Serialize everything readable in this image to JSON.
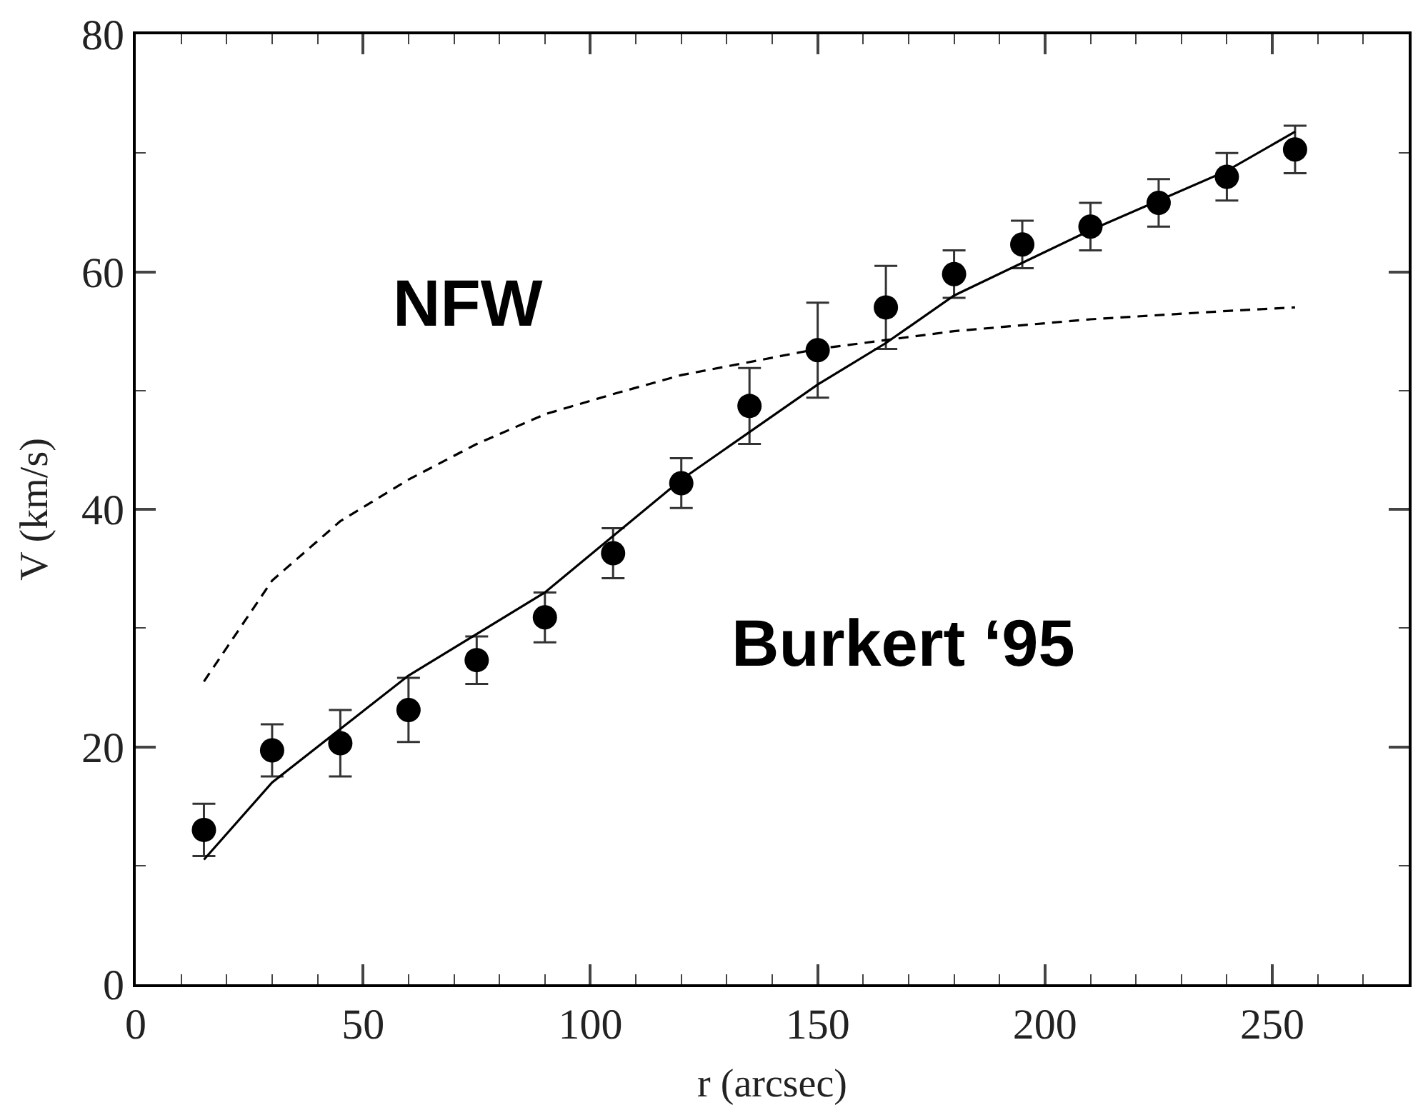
{
  "chart_data": {
    "type": "scatter",
    "xlabel": "r (arcsec)",
    "ylabel": "V (km/s)",
    "xlim": [
      0,
      280
    ],
    "ylim": [
      0,
      80
    ],
    "xticks": [
      0,
      50,
      100,
      150,
      200,
      250
    ],
    "yticks": [
      0,
      20,
      40,
      60,
      80
    ],
    "series": [
      {
        "marker": "circle",
        "color": "#000000",
        "x": [
          15,
          30,
          45,
          60,
          75,
          90,
          105,
          120,
          135,
          150,
          165,
          180,
          195,
          210,
          225,
          240,
          255
        ],
        "values": [
          13,
          19.7,
          20.3,
          23.1,
          27.3,
          30.9,
          36.3,
          42.2,
          48.7,
          53.4,
          57,
          59.8,
          62.3,
          63.8,
          65.8,
          68,
          70.3
        ],
        "errors": [
          2.2,
          2.2,
          2.8,
          2.7,
          2,
          2.1,
          2.1,
          2.1,
          3.2,
          4,
          3.5,
          2,
          2,
          2,
          2,
          2,
          2
        ]
      },
      {
        "type": "line",
        "marker": "none",
        "line_style": "solid",
        "color": "#000000",
        "x": [
          15,
          30,
          60,
          90,
          120,
          150,
          165,
          180,
          210,
          240,
          255
        ],
        "values": [
          10.5,
          17,
          26,
          33,
          42.5,
          50.5,
          54,
          58,
          63.5,
          68.5,
          71.8
        ]
      },
      {
        "type": "line",
        "marker": "none",
        "line_style": "dashed",
        "color": "#000000",
        "x": [
          15,
          30,
          45,
          60,
          75,
          90,
          105,
          120,
          150,
          180,
          210,
          240,
          255
        ],
        "values": [
          25.5,
          34,
          39,
          42.5,
          45.5,
          48,
          49.7,
          51.3,
          53.5,
          55,
          56,
          56.7,
          57
        ]
      }
    ],
    "annotations": [
      "NFW",
      "Burkert ‘95"
    ]
  }
}
